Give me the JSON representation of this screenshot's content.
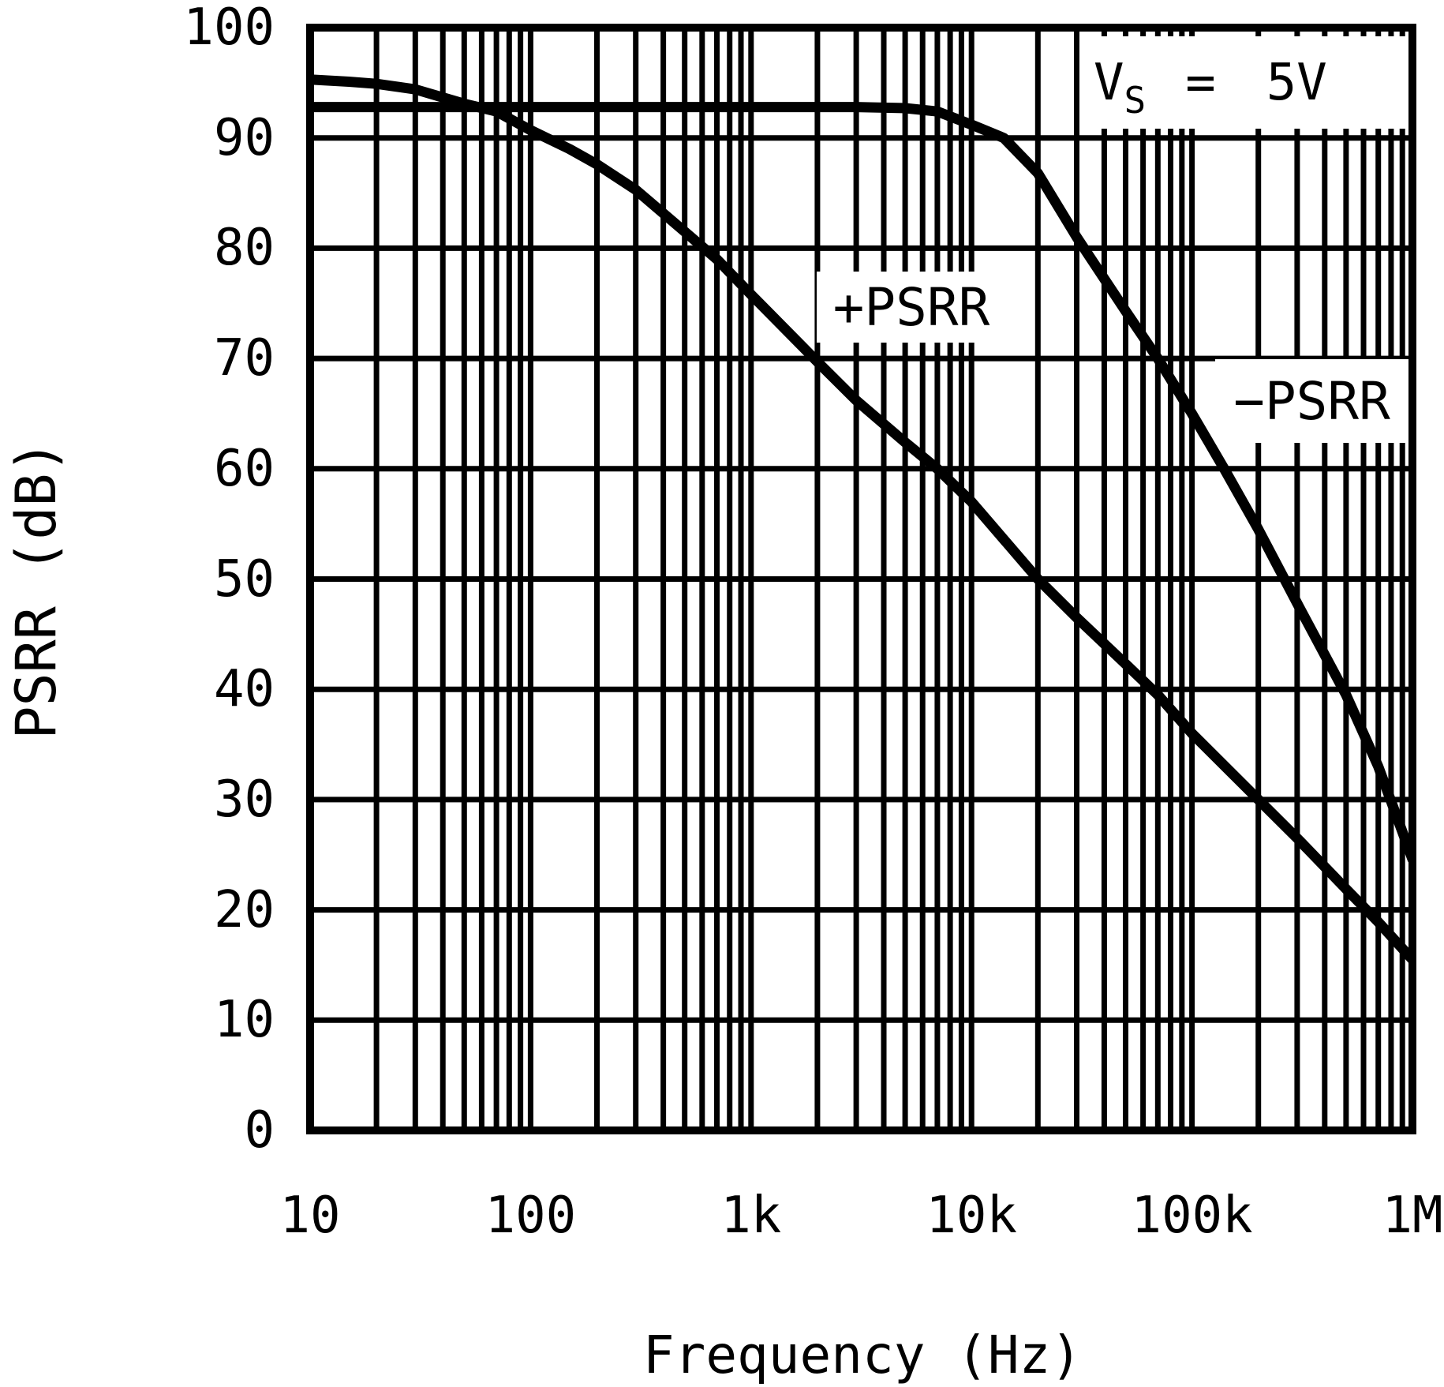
{
  "chart_data": {
    "type": "line",
    "title": "",
    "xlabel": "Frequency (Hz)",
    "ylabel": "PSRR (dB)",
    "x_scale": "log",
    "xlim": [
      10,
      1000000
    ],
    "ylim": [
      0,
      100
    ],
    "grid": true,
    "x_tick_values": [
      10,
      100,
      1000,
      10000,
      100000,
      1000000
    ],
    "x_tick_labels": [
      "10",
      "100",
      "1k",
      "10k",
      "100k",
      "1M"
    ],
    "y_tick_values": [
      100,
      90,
      80,
      70,
      60,
      50,
      40,
      30,
      20,
      10,
      0
    ],
    "y_tick_labels": [
      "100",
      "90",
      "80",
      "70",
      "60",
      "50",
      "40",
      "30",
      "20",
      "10",
      "0"
    ],
    "annotation": {
      "var": "V",
      "sub": "S",
      "eq": "=",
      "value": "5V"
    },
    "colors": {
      "foreground": "#000000",
      "background": "#ffffff"
    },
    "series": [
      {
        "name": "+PSRR",
        "label": "+PSRR",
        "points": [
          [
            10,
            95.3
          ],
          [
            15,
            95.1
          ],
          [
            20,
            94.9
          ],
          [
            30,
            94.4
          ],
          [
            50,
            93.1
          ],
          [
            70,
            92.4
          ],
          [
            100,
            90.7
          ],
          [
            150,
            89.0
          ],
          [
            200,
            87.6
          ],
          [
            300,
            85.3
          ],
          [
            500,
            81.5
          ],
          [
            700,
            79.0
          ],
          [
            1000,
            75.8
          ],
          [
            2000,
            69.7
          ],
          [
            3000,
            66.2
          ],
          [
            5000,
            62.4
          ],
          [
            7000,
            60.0
          ],
          [
            10000,
            57.0
          ],
          [
            20000,
            50.0
          ],
          [
            30000,
            46.5
          ],
          [
            50000,
            42.3
          ],
          [
            70000,
            39.5
          ],
          [
            100000,
            36.0
          ],
          [
            200000,
            30.0
          ],
          [
            300000,
            26.5
          ],
          [
            500000,
            21.9
          ],
          [
            700000,
            18.9
          ],
          [
            1000000,
            15.5
          ]
        ]
      },
      {
        "name": "-PSRR",
        "label": "−PSRR",
        "points": [
          [
            10,
            92.8
          ],
          [
            1000,
            92.8
          ],
          [
            3000,
            92.8
          ],
          [
            5000,
            92.7
          ],
          [
            7000,
            92.4
          ],
          [
            10000,
            91.2
          ],
          [
            14000,
            90.0
          ],
          [
            20000,
            86.8
          ],
          [
            30000,
            81.0
          ],
          [
            50000,
            74.3
          ],
          [
            70000,
            70.0
          ],
          [
            100000,
            65.0
          ],
          [
            140000,
            60.0
          ],
          [
            200000,
            54.5
          ],
          [
            300000,
            47.8
          ],
          [
            500000,
            39.5
          ],
          [
            700000,
            33.0
          ],
          [
            1000000,
            24.6
          ]
        ]
      }
    ]
  }
}
